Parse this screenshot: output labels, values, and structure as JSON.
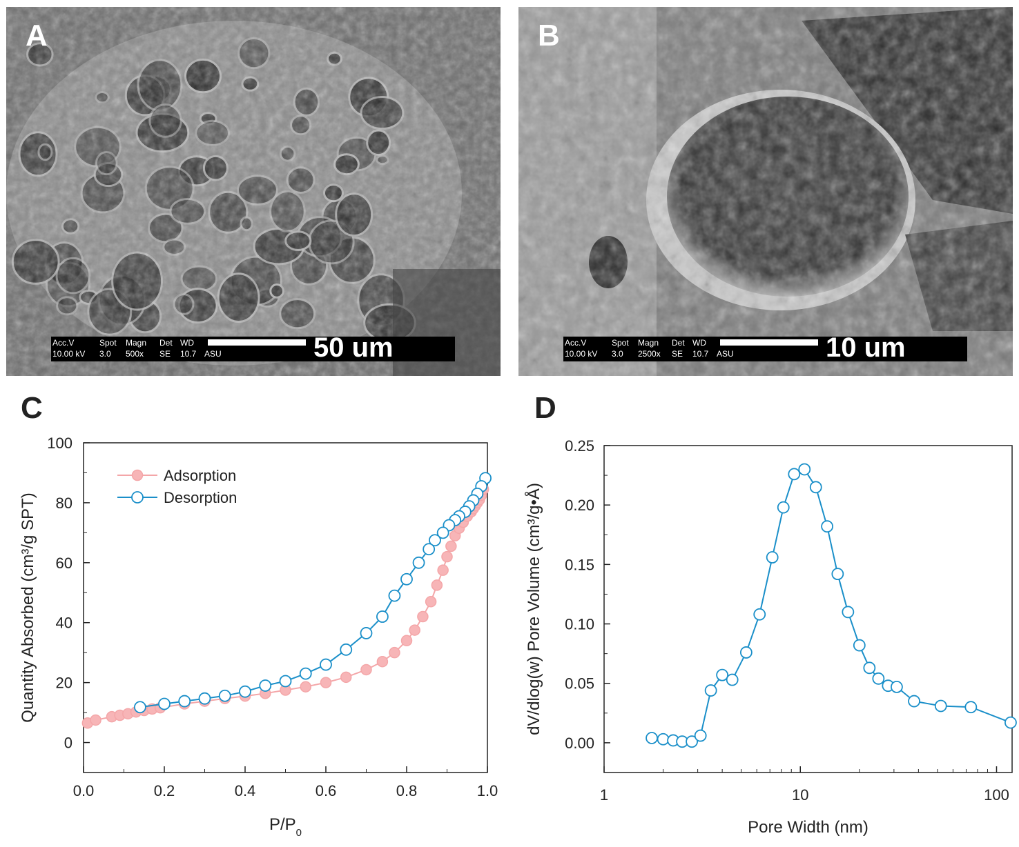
{
  "panels": {
    "A": {
      "letter": "A",
      "infobar": {
        "h1": "Acc.V",
        "h2": "Spot",
        "h3": "Magn",
        "h4": "Det",
        "h5": "WD",
        "v1": "10.00 kV",
        "v2": "3.0",
        "v3": "500x",
        "v4": "SE",
        "v5": "10.7",
        "v6": "ASU"
      },
      "scale_label": "50 um"
    },
    "B": {
      "letter": "B",
      "infobar": {
        "h1": "Acc.V",
        "h2": "Spot",
        "h3": "Magn",
        "h4": "Det",
        "h5": "WD",
        "v1": "10.00 kV",
        "v2": "3.0",
        "v3": "2500x",
        "v4": "SE",
        "v5": "10.7",
        "v6": "ASU"
      },
      "scale_label": "10 um"
    },
    "C": {
      "letter": "C"
    },
    "D": {
      "letter": "D"
    }
  },
  "chart_data": [
    {
      "type": "scatter",
      "panel": "C",
      "title": "",
      "xlabel": "P/P",
      "xlabel_sub": "0",
      "ylabel": "Quantity Absorbed (cm³/g SPT)",
      "xlim": [
        0.0,
        1.0
      ],
      "ylim": [
        -10,
        100
      ],
      "xticks": [
        "0.0",
        "0.2",
        "0.4",
        "0.6",
        "0.8",
        "1.0"
      ],
      "yticks": [
        "0",
        "20",
        "40",
        "60",
        "80",
        "100"
      ],
      "legend_position": "top-left",
      "colors": {
        "adsorption": "#f4a6a8",
        "adsorption_fill": "#f7b5b7",
        "desorption": "#1a8fc9"
      },
      "series": [
        {
          "name": "Adsorption",
          "marker": "filled-circle",
          "x": [
            0.01,
            0.03,
            0.07,
            0.09,
            0.11,
            0.13,
            0.15,
            0.17,
            0.19,
            0.25,
            0.3,
            0.35,
            0.4,
            0.45,
            0.5,
            0.55,
            0.6,
            0.65,
            0.7,
            0.74,
            0.77,
            0.8,
            0.82,
            0.84,
            0.86,
            0.875,
            0.89,
            0.9,
            0.91,
            0.92,
            0.93,
            0.94,
            0.95,
            0.96,
            0.965,
            0.97,
            0.975,
            0.98,
            0.985,
            0.99
          ],
          "y": [
            6.5,
            7.5,
            8.6,
            9.1,
            9.6,
            10.2,
            10.7,
            11.2,
            11.6,
            12.9,
            13.8,
            14.7,
            15.5,
            16.4,
            17.5,
            18.6,
            20.0,
            21.8,
            24.3,
            27.0,
            30.0,
            34.0,
            37.5,
            42.0,
            47.0,
            52.5,
            57.5,
            62.0,
            65.5,
            69.0,
            71.5,
            73.5,
            75.5,
            77.0,
            78.0,
            79.0,
            80.0,
            81.0,
            82.5,
            84.5
          ]
        },
        {
          "name": "Desorption",
          "marker": "open-circle",
          "x": [
            0.995,
            0.985,
            0.975,
            0.965,
            0.955,
            0.945,
            0.93,
            0.92,
            0.905,
            0.89,
            0.87,
            0.855,
            0.83,
            0.8,
            0.77,
            0.74,
            0.7,
            0.65,
            0.6,
            0.55,
            0.5,
            0.45,
            0.4,
            0.35,
            0.3,
            0.25,
            0.2,
            0.14
          ],
          "y": [
            88.2,
            85.5,
            83.0,
            80.8,
            78.8,
            77.0,
            75.5,
            74.2,
            72.5,
            70.0,
            67.5,
            64.5,
            60.0,
            54.5,
            49.0,
            42.0,
            36.5,
            31.0,
            26.0,
            23.0,
            20.5,
            19.0,
            17.0,
            15.6,
            14.7,
            13.8,
            12.9,
            11.8
          ]
        }
      ]
    },
    {
      "type": "line",
      "panel": "D",
      "title": "",
      "xlabel": "Pore Width (nm)",
      "ylabel": "dV/dlog(w) Pore Volume (cm³/g•Å)",
      "xscale": "log",
      "xlim": [
        1,
        120
      ],
      "ylim": [
        -0.025,
        0.25
      ],
      "xticks": [
        "1",
        "10",
        "100"
      ],
      "yticks": [
        "0.00",
        "0.05",
        "0.10",
        "0.15",
        "0.20",
        "0.25"
      ],
      "colors": {
        "line": "#1a8fc9"
      },
      "series": [
        {
          "name": "",
          "marker": "open-circle",
          "x": [
            1.75,
            2.0,
            2.25,
            2.5,
            2.8,
            3.1,
            3.5,
            4.0,
            4.5,
            5.3,
            6.2,
            7.2,
            8.2,
            9.3,
            10.5,
            12.0,
            13.7,
            15.5,
            17.5,
            20.0,
            22.5,
            25.0,
            28.0,
            31.0,
            38.0,
            52.0,
            74.0,
            118.0
          ],
          "y": [
            0.004,
            0.003,
            0.002,
            0.001,
            0.001,
            0.006,
            0.044,
            0.057,
            0.053,
            0.076,
            0.108,
            0.156,
            0.198,
            0.226,
            0.23,
            0.215,
            0.182,
            0.142,
            0.11,
            0.082,
            0.063,
            0.054,
            0.048,
            0.047,
            0.035,
            0.031,
            0.03,
            0.017
          ]
        }
      ]
    }
  ]
}
